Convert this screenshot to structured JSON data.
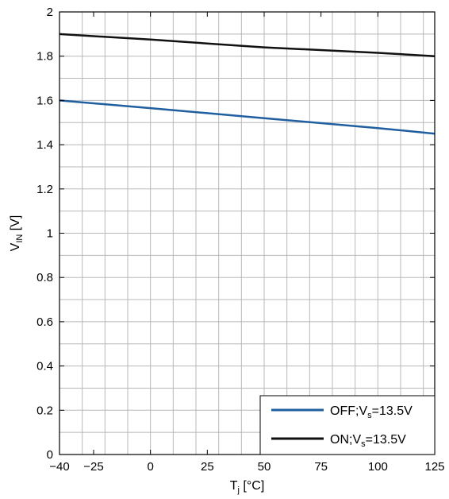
{
  "chart_data": {
    "type": "line",
    "xlabel": {
      "main": "T",
      "sub": "j",
      "unit": " [°C]"
    },
    "ylabel": {
      "main": "V",
      "sub": "IN",
      "unit": " [V]"
    },
    "xlim": [
      -40,
      125
    ],
    "ylim": [
      0,
      2
    ],
    "x_ticks": [
      -40,
      -25,
      0,
      25,
      50,
      75,
      100,
      125
    ],
    "x_tick_labels": [
      "−40",
      "−25",
      "0",
      "25",
      "50",
      "75",
      "100",
      "125"
    ],
    "y_ticks": [
      0,
      0.2,
      0.4,
      0.6,
      0.8,
      1,
      1.2,
      1.4,
      1.6,
      1.8,
      2
    ],
    "y_tick_labels": [
      "0",
      "0.2",
      "0.4",
      "0.6",
      "0.8",
      "1",
      "1.2",
      "1.4",
      "1.6",
      "1.8",
      "2"
    ],
    "grid": true,
    "legend_position": "bottom-right",
    "series": [
      {
        "label": {
          "main": "OFF;V",
          "sub": "s",
          "tail": "=13.5V"
        },
        "color": "#1f5fa0",
        "x": [
          -40,
          0,
          50,
          100,
          125
        ],
        "y": [
          1.6,
          1.565,
          1.52,
          1.475,
          1.45
        ]
      },
      {
        "label": {
          "main": "ON;V",
          "sub": "s",
          "tail": "=13.5V"
        },
        "color": "#111111",
        "x": [
          -40,
          0,
          50,
          100,
          125
        ],
        "y": [
          1.9,
          1.875,
          1.84,
          1.815,
          1.8
        ]
      }
    ]
  }
}
